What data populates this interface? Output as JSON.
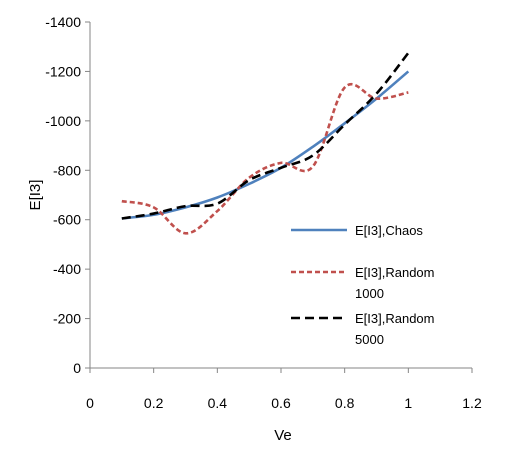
{
  "chart_data": {
    "type": "line",
    "title": "",
    "xlabel": "Ve",
    "ylabel": "E[I3]",
    "xlim": [
      0,
      1.2
    ],
    "ylim": [
      0,
      -1400
    ],
    "xticks": [
      0,
      0.2,
      0.4,
      0.6,
      0.8,
      1,
      1.2
    ],
    "xtick_labels": [
      "0",
      "0.2",
      "0.4",
      "0.6",
      "0.8",
      "1",
      "1.2"
    ],
    "yticks": [
      0,
      -200,
      -400,
      -600,
      -800,
      -1000,
      -1200,
      -1400
    ],
    "ytick_labels": [
      "0",
      "-200",
      "-400",
      "-600",
      "-800",
      "-1000",
      "-1200",
      "-1400"
    ],
    "grid": false,
    "legend_position": "right",
    "series": [
      {
        "name": "E[I3],Chaos",
        "color": "#4f81bd",
        "dash": "solid",
        "x": [
          0.1,
          0.2,
          0.3,
          0.4,
          0.5,
          0.6,
          0.7,
          0.8,
          0.9,
          1.0
        ],
        "y": [
          -605,
          -620,
          -650,
          -690,
          -745,
          -810,
          -895,
          -990,
          -1090,
          -1200
        ]
      },
      {
        "name": "E[I3],Random 1000",
        "color": "#c0504d",
        "dash": "short",
        "x": [
          0.1,
          0.2,
          0.3,
          0.4,
          0.5,
          0.6,
          0.7,
          0.8,
          0.9,
          1.0
        ],
        "y": [
          -675,
          -650,
          -545,
          -635,
          -770,
          -830,
          -815,
          -1135,
          -1090,
          -1115
        ]
      },
      {
        "name": "E[I3],Random 5000",
        "color": "#000000",
        "dash": "long",
        "x": [
          0.1,
          0.2,
          0.3,
          0.4,
          0.5,
          0.6,
          0.7,
          0.8,
          0.9,
          1.0
        ],
        "y": [
          -605,
          -625,
          -655,
          -665,
          -760,
          -810,
          -860,
          -985,
          -1110,
          -1275
        ]
      }
    ]
  }
}
